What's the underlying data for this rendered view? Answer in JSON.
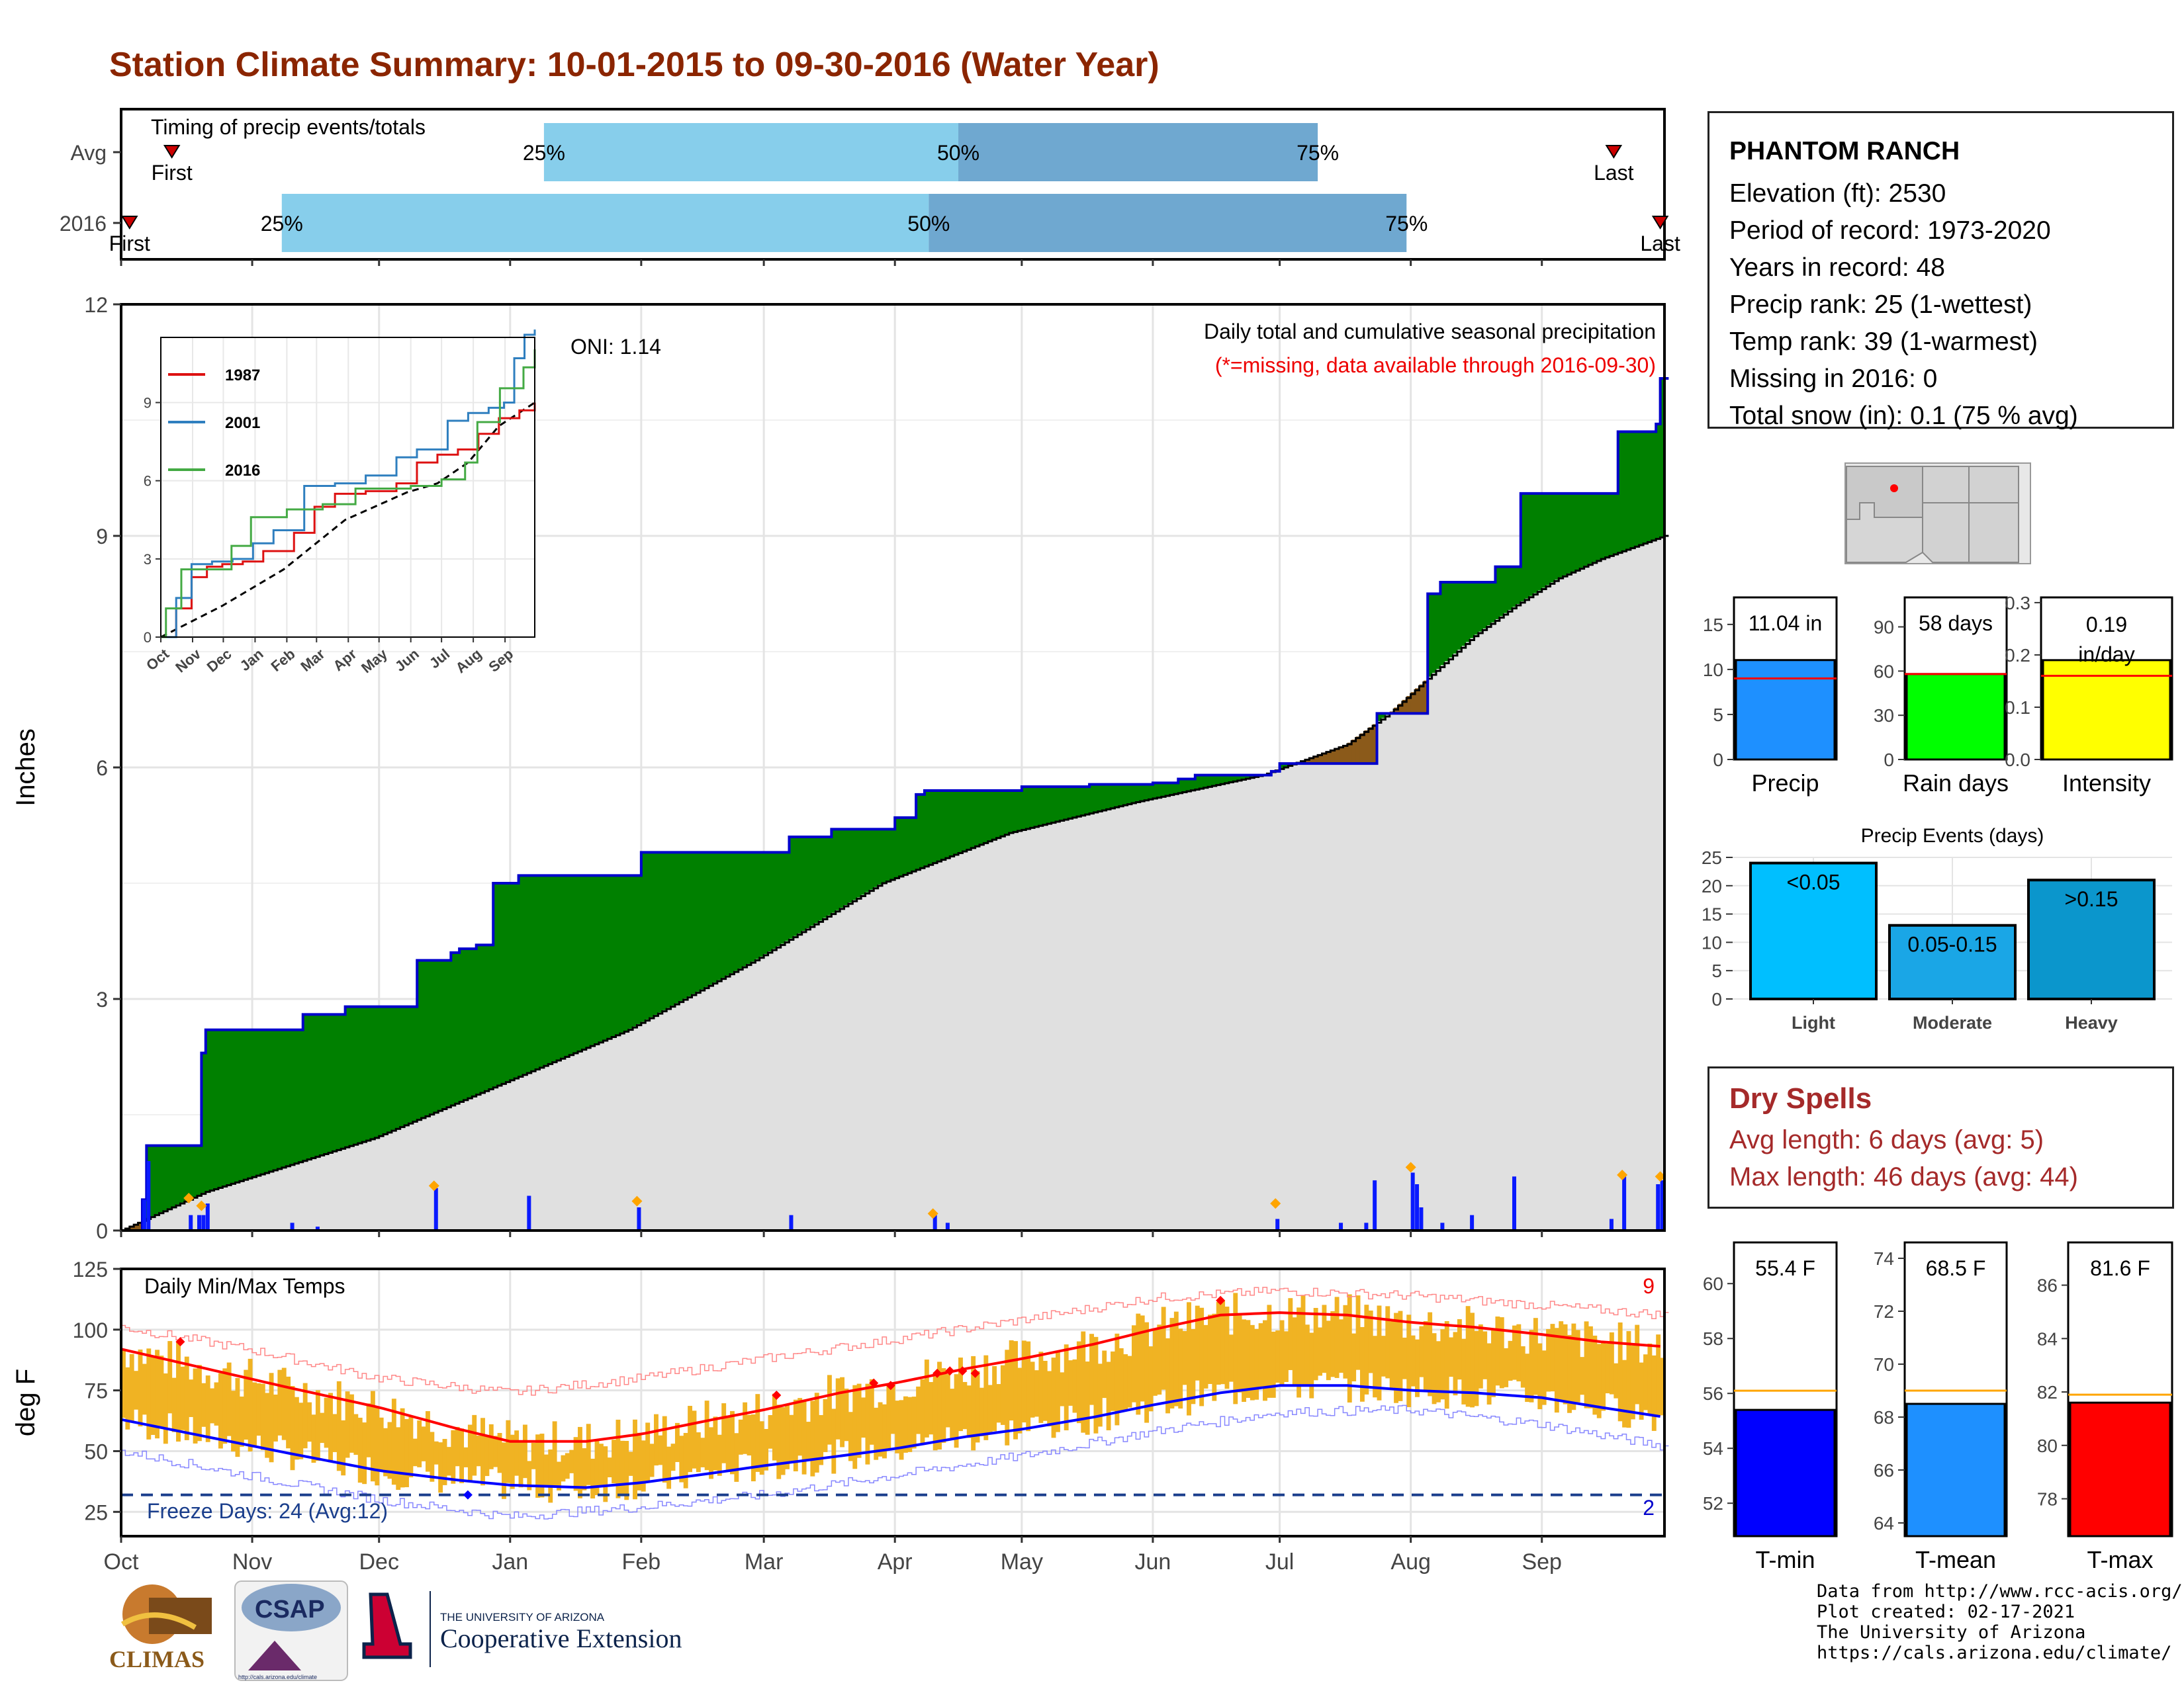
{
  "title": "Station Climate Summary: 10-01-2015 to 09-30-2016 (Water Year)",
  "station": {
    "name": "PHANTOM RANCH",
    "lines": [
      "Elevation (ft): 2530",
      "Period of record: 1973-2020",
      "Years in record: 48",
      "Precip rank: 25 (1-wettest)",
      "Temp rank: 39 (1-warmest)",
      "Missing in 2016: 0",
      "Total snow (in): 0.1 (75 % avg)"
    ]
  },
  "timing": {
    "label": "Timing of precip events/totals",
    "rows": [
      {
        "name": "Avg",
        "first_label": "First",
        "last_label": "Last",
        "first_day": 12,
        "last_day": 353,
        "q25": 100,
        "q50": 198,
        "q75": 283
      },
      {
        "name": "2016",
        "first_label": "First",
        "last_label": "Last",
        "first_day": 2,
        "last_day": 364,
        "q25": 38,
        "q50": 191,
        "q75": 304
      }
    ],
    "pct_labels": [
      "25%",
      "50%",
      "75%"
    ],
    "colors": {
      "light": "#87ceeb",
      "dark": "#6fa8d0",
      "marker": "#cc0000"
    }
  },
  "months": [
    "Oct",
    "Nov",
    "Dec",
    "Jan",
    "Feb",
    "Mar",
    "Apr",
    "May",
    "Jun",
    "Jul",
    "Aug",
    "Sep"
  ],
  "month_start_days": [
    0,
    31,
    61,
    92,
    123,
    152,
    183,
    213,
    244,
    274,
    305,
    336
  ],
  "chart_data": [
    {
      "type": "area",
      "title": "Daily total and cumulative seasonal precipitation",
      "subtitle": "(*=missing, data available through 2016-09-30)",
      "oni": "ONI: 1.14",
      "ylabel": "Inches",
      "ylim": [
        0,
        12
      ],
      "yticks": [
        0,
        3,
        6,
        9,
        12
      ],
      "xlim": [
        0,
        365
      ],
      "cumulative_2016": {
        "x": [
          0,
          5,
          6,
          16,
          19,
          20,
          31,
          43,
          53,
          56,
          69,
          70,
          78,
          80,
          82,
          84,
          88,
          94,
          96,
          123,
          125,
          130,
          136,
          158,
          168,
          183,
          188,
          190,
          213,
          229,
          244,
          250,
          254,
          272,
          274,
          296,
          297,
          307,
          309,
          312,
          325,
          328,
          331,
          353,
          354,
          361,
          363,
          364
        ],
        "y": [
          0,
          0.4,
          1.1,
          1.1,
          2.3,
          2.6,
          2.6,
          2.8,
          2.9,
          2.9,
          2.9,
          3.5,
          3.6,
          3.65,
          3.65,
          3.7,
          4.5,
          4.6,
          4.6,
          4.9,
          4.9,
          4.9,
          4.9,
          5.1,
          5.2,
          5.35,
          5.65,
          5.7,
          5.75,
          5.78,
          5.8,
          5.85,
          5.9,
          5.95,
          6.05,
          6.05,
          6.7,
          6.7,
          8.25,
          8.4,
          8.6,
          8.6,
          9.55,
          9.55,
          10.35,
          10.35,
          10.45,
          11.04
        ]
      },
      "cumulative_avg": {
        "x": [
          0,
          20,
          40,
          60,
          90,
          120,
          150,
          180,
          210,
          240,
          270,
          290,
          300,
          310,
          320,
          330,
          340,
          350,
          365
        ],
        "y": [
          0,
          0.5,
          0.85,
          1.2,
          1.9,
          2.6,
          3.5,
          4.5,
          5.15,
          5.55,
          5.9,
          6.3,
          6.7,
          7.2,
          7.7,
          8.1,
          8.45,
          8.7,
          9.0
        ]
      },
      "daily_bars": {
        "x": [
          5,
          6,
          16,
          18,
          19,
          20,
          40,
          46,
          74,
          96,
          122,
          158,
          192,
          195,
          273,
          288,
          294,
          296,
          305,
          306,
          307,
          312,
          319,
          329,
          352,
          355,
          363,
          364
        ],
        "y": [
          0.4,
          0.9,
          0.2,
          0.2,
          0.2,
          0.35,
          0.1,
          0.05,
          0.55,
          0.45,
          0.3,
          0.2,
          0.2,
          0.1,
          0.15,
          0.1,
          0.1,
          0.65,
          0.75,
          0.6,
          0.3,
          0.1,
          0.2,
          0.7,
          0.15,
          0.7,
          0.6,
          0.65
        ]
      },
      "colors": {
        "above": "#008000",
        "below": "#8b5a1a",
        "avg_fill": "#e0e0e0",
        "line": "#0000cc",
        "bars": "#0a1aff",
        "diamond": "#ffa500"
      },
      "inset": {
        "xlabels": [
          "Oct",
          "Nov",
          "Dec",
          "Jan",
          "Feb",
          "Mar",
          "Apr",
          "May",
          "Jun",
          "Jul",
          "Aug",
          "Sep"
        ],
        "yticks": [
          0,
          3,
          6,
          9
        ],
        "ylim": [
          0,
          11.5
        ],
        "series": [
          {
            "name": "1987",
            "color": "#dd1111",
            "x": [
              0,
              15,
              30,
              45,
              60,
              80,
              100,
              130,
              150,
              170,
              200,
              230,
              250,
              270,
              290,
              310,
              330,
              350,
              365
            ],
            "y": [
              0,
              1.1,
              2.3,
              2.7,
              2.8,
              2.9,
              3.3,
              4.0,
              5.0,
              5.5,
              5.6,
              5.9,
              6.7,
              7.0,
              7.2,
              7.8,
              8.4,
              8.7,
              9.0
            ]
          },
          {
            "name": "2001",
            "color": "#2f7fbf",
            "x": [
              0,
              15,
              30,
              50,
              70,
              90,
              110,
              140,
              170,
              200,
              230,
              250,
              280,
              300,
              320,
              335,
              345,
              355,
              365
            ],
            "y": [
              0,
              1.5,
              2.8,
              2.9,
              3.0,
              3.6,
              4.1,
              5.8,
              5.9,
              6.2,
              6.9,
              7.2,
              8.3,
              8.6,
              8.8,
              9.0,
              10.7,
              11.6,
              11.8
            ]
          },
          {
            "name": "2016",
            "color": "#44aa44",
            "x": [
              0,
              5,
              20,
              31,
              69,
              88,
              123,
              158,
              190,
              244,
              274,
              297,
              309,
              331,
              354,
              365
            ],
            "y": [
              0,
              1.1,
              2.6,
              2.6,
              3.5,
              4.6,
              4.9,
              5.1,
              5.7,
              5.8,
              6.05,
              6.7,
              8.25,
              9.55,
              10.35,
              11.04
            ]
          }
        ],
        "avg_series": {
          "x": [
            0,
            60,
            120,
            180,
            240,
            270,
            300,
            330,
            365
          ],
          "y": [
            0,
            1.2,
            2.6,
            4.5,
            5.55,
            5.9,
            6.7,
            8.1,
            9.0
          ]
        }
      }
    },
    {
      "type": "bar",
      "title": "Precip",
      "label": "11.04 in",
      "value": 11.04,
      "avg": 9.0,
      "ylim": [
        0,
        18
      ],
      "yticks": [
        0,
        5,
        10,
        15
      ],
      "color": "#1e90ff"
    },
    {
      "type": "bar",
      "title": "Rain days",
      "label": "58 days",
      "value": 58,
      "avg": 58,
      "ylim": [
        0,
        110
      ],
      "yticks": [
        0,
        30,
        60,
        90
      ],
      "color": "#00ff00"
    },
    {
      "type": "bar",
      "title": "Intensity",
      "label": "0.19 in/day",
      "value": 0.19,
      "avg": 0.16,
      "ylim": [
        0,
        0.31
      ],
      "yticks": [
        "0.0",
        "0.1",
        "0.2",
        "0.3"
      ],
      "color": "#ffff00"
    },
    {
      "type": "bar",
      "title": "Precip Events (days)",
      "categories": [
        "Light",
        "Moderate",
        "Heavy"
      ],
      "labels": [
        "<0.05",
        "0.05-0.15",
        ">0.15"
      ],
      "values": [
        24,
        13,
        21
      ],
      "ylim": [
        0,
        25
      ],
      "yticks": [
        0,
        5,
        10,
        15,
        20,
        25
      ],
      "colors": [
        "#00bfff",
        "#1aa6e6",
        "#0b96cc"
      ]
    },
    {
      "type": "line",
      "title": "Daily Min/Max Temps",
      "ylabel": "deg F",
      "ylim": [
        15,
        125
      ],
      "yticks": [
        25,
        50,
        75,
        100,
        125
      ],
      "freeze_label": "Freeze Days: 24 (Avg:12)",
      "freeze_line": 32,
      "count_max": "9",
      "count_min": "2",
      "avg_max": {
        "x": [
          0,
          20,
          40,
          61,
          80,
          92,
          110,
          123,
          140,
          152,
          170,
          183,
          200,
          213,
          230,
          244,
          260,
          274,
          290,
          305,
          320,
          336,
          350,
          365
        ],
        "y": [
          92,
          84,
          76,
          68,
          59,
          54,
          54,
          57,
          63,
          67,
          74,
          78,
          84,
          88,
          94,
          100,
          106,
          107,
          106,
          103,
          101,
          98,
          95,
          93
        ]
      },
      "avg_min": {
        "x": [
          0,
          20,
          40,
          61,
          80,
          92,
          110,
          123,
          140,
          152,
          170,
          183,
          200,
          213,
          230,
          244,
          260,
          274,
          290,
          305,
          320,
          336,
          350,
          365
        ],
        "y": [
          63,
          56,
          49,
          42,
          38,
          36,
          35,
          37,
          41,
          44,
          48,
          51,
          56,
          59,
          64,
          69,
          74,
          77,
          77,
          75,
          74,
          72,
          68,
          64
        ]
      },
      "rec_max": {
        "x": [
          0,
          30,
          61,
          92,
          123,
          152,
          183,
          213,
          244,
          274,
          305,
          336,
          365
        ],
        "y": [
          101,
          92,
          80,
          74,
          80,
          88,
          96,
          104,
          113,
          116,
          114,
          110,
          106
        ]
      },
      "rec_min": {
        "x": [
          0,
          30,
          61,
          92,
          123,
          152,
          183,
          213,
          244,
          274,
          305,
          336,
          365
        ],
        "y": [
          50,
          40,
          30,
          23,
          27,
          32,
          40,
          48,
          58,
          66,
          67,
          61,
          52
        ]
      },
      "colors": {
        "bars": "#f0b323",
        "max": "#ff0000",
        "min": "#0000ff",
        "rec_max": "#ff8888",
        "rec_min": "#8888ff",
        "freeze": "#1a3e8c"
      }
    },
    {
      "type": "bar",
      "title": "T-min",
      "label": "55.4 F",
      "value": 55.4,
      "avg": 56.1,
      "ylim": [
        50.8,
        61.5
      ],
      "yticks": [
        52,
        54,
        56,
        58,
        60
      ],
      "color": "#0000ff"
    },
    {
      "type": "bar",
      "title": "T-mean",
      "label": "68.5 F",
      "value": 68.5,
      "avg": 69.0,
      "ylim": [
        63.5,
        74.6
      ],
      "yticks": [
        64,
        66,
        68,
        70,
        72,
        74
      ],
      "color": "#1e90ff"
    },
    {
      "type": "bar",
      "title": "T-max",
      "label": "81.6 F",
      "value": 81.6,
      "avg": 81.9,
      "ylim": [
        76.6,
        87.6
      ],
      "yticks": [
        78,
        80,
        82,
        84,
        86
      ],
      "color": "#ff0000"
    }
  ],
  "dry_spells": {
    "heading": "Dry Spells",
    "avg": "Avg length: 6 days (avg: 5)",
    "max": "Max length: 46 days (avg: 44)"
  },
  "credits": [
    "Data from http://www.rcc-acis.org/",
    "Plot created: 02-17-2021",
    "The University of Arizona",
    "https://cals.arizona.edu/climate/"
  ],
  "logos": {
    "climas": "CLIMAS",
    "csap": "CSAP",
    "csap_url": "http://cals.arizona.edu/climate",
    "ua_top": "THE UNIVERSITY OF ARIZONA",
    "ua_bottom": "Cooperative Extension"
  }
}
